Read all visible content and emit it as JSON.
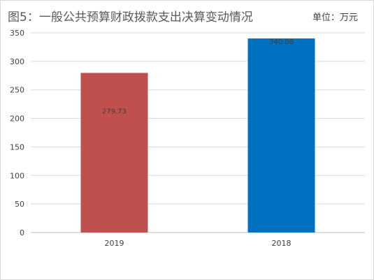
{
  "chart_title": "图5：一般公共预算财政拨款支出决算变动情况",
  "unit_label": "单位：万元",
  "chart_data": {
    "type": "bar",
    "categories": [
      "2019",
      "2018"
    ],
    "values": [
      279.73,
      340.08
    ],
    "value_labels": [
      "279.73",
      "340.08"
    ],
    "bar_colors": [
      "#C0504D",
      "#0070C0"
    ],
    "ylim": [
      0,
      350
    ],
    "yticks": [
      0,
      50,
      100,
      150,
      200,
      250,
      300,
      350
    ],
    "grid": true,
    "legend": "none",
    "title": "图5：一般公共预算财政拨款支出决算变动情况",
    "xlabel": "",
    "ylabel": ""
  }
}
